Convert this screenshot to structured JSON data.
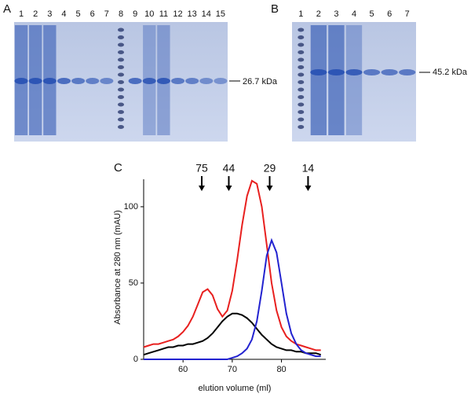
{
  "panel_a": {
    "label": "A",
    "lanes": [
      "1",
      "2",
      "3",
      "4",
      "5",
      "6",
      "7",
      "8",
      "9",
      "10",
      "11",
      "12",
      "13",
      "14",
      "15"
    ],
    "band_label": "26.7 kDa"
  },
  "panel_b": {
    "label": "B",
    "lanes": [
      "1",
      "2",
      "3",
      "4",
      "5",
      "6",
      "7"
    ],
    "band_label": "45.2 kDa"
  },
  "chart_data": {
    "type": "line",
    "panel_label": "C",
    "x_label": "elution volume (ml)",
    "y_label": "Absorbance at 280 nm (mAU)",
    "x": [
      52,
      53,
      54,
      55,
      56,
      57,
      58,
      59,
      60,
      61,
      62,
      63,
      64,
      65,
      66,
      67,
      68,
      69,
      70,
      71,
      72,
      73,
      74,
      75,
      76,
      77,
      78,
      79,
      80,
      81,
      82,
      83,
      84,
      85,
      86,
      87,
      88
    ],
    "series": [
      {
        "color": "#e8201f",
        "values": [
          8,
          9,
          10,
          10,
          11,
          12,
          13,
          15,
          18,
          22,
          28,
          36,
          44,
          46,
          42,
          33,
          28,
          32,
          45,
          65,
          88,
          107,
          117,
          115,
          100,
          75,
          50,
          32,
          21,
          15,
          12,
          10,
          9,
          8,
          7,
          6,
          6
        ]
      },
      {
        "color": "#000000",
        "values": [
          3,
          4,
          5,
          6,
          7,
          8,
          8,
          9,
          9,
          10,
          10,
          11,
          12,
          14,
          17,
          21,
          25,
          28,
          30,
          30,
          29,
          27,
          24,
          20,
          16,
          13,
          10,
          8,
          7,
          6,
          6,
          5,
          5,
          4,
          4,
          4,
          3
        ]
      },
      {
        "color": "#2323d0",
        "values": [
          0,
          0,
          0,
          0,
          0,
          0,
          0,
          0,
          0,
          0,
          0,
          0,
          0,
          0,
          0,
          0,
          0,
          0,
          1,
          2,
          4,
          7,
          13,
          25,
          45,
          68,
          78,
          70,
          50,
          30,
          17,
          10,
          6,
          4,
          3,
          2,
          2
        ]
      }
    ],
    "xlim": [
      52,
      89
    ],
    "ylim": [
      0,
      118
    ],
    "xticks": [
      60,
      70,
      80
    ],
    "yticks": [
      0,
      50,
      100
    ],
    "annotations": [
      {
        "x": 63.8,
        "label": "75"
      },
      {
        "x": 69.3,
        "label": "44"
      },
      {
        "x": 77.6,
        "label": "29"
      },
      {
        "x": 85.4,
        "label": "14"
      }
    ]
  }
}
